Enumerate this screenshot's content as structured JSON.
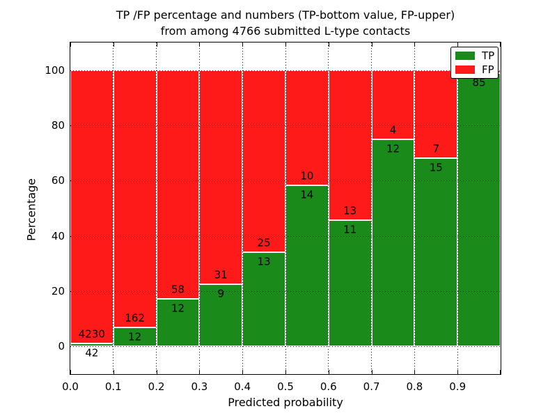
{
  "figure": {
    "title_line1": "TP /FP percentage and numbers (TP-bottom value, FP-upper)",
    "title_line2": "from among 4766 submitted L-type contacts"
  },
  "chart_data": {
    "type": "bar",
    "stacked": true,
    "normalized": "each bin scaled to 100%, numeric count labels shown at TP/FP boundary",
    "title": "TP /FP percentage and numbers (TP-bottom value, FP-upper)\nfrom among 4766 submitted L-type contacts",
    "xlabel": "Predicted probability",
    "ylabel": "Percentage",
    "xlim": [
      0.0,
      1.0
    ],
    "ylim": [
      -10,
      110
    ],
    "bin_width": 0.1,
    "x_tick_labels": [
      "0.0",
      "0.1",
      "0.2",
      "0.3",
      "0.4",
      "0.5",
      "0.6",
      "0.7",
      "0.8",
      "0.9"
    ],
    "y_tick_values": [
      0,
      20,
      40,
      60,
      80,
      100
    ],
    "grid": "dotted black, horizontal at y ticks and vertical at x ticks",
    "categories": [
      "0.0-0.1",
      "0.1-0.2",
      "0.2-0.3",
      "0.3-0.4",
      "0.4-0.5",
      "0.5-0.6",
      "0.6-0.7",
      "0.7-0.8",
      "0.8-0.9",
      "0.9-1.0"
    ],
    "series": [
      {
        "name": "TP",
        "color": "#1a8a1a",
        "counts": [
          42,
          12,
          12,
          9,
          13,
          14,
          11,
          12,
          15,
          85
        ]
      },
      {
        "name": "FP",
        "color": "#ff1a1a",
        "counts": [
          4230,
          162,
          58,
          31,
          25,
          10,
          13,
          4,
          7,
          1
        ]
      }
    ],
    "tp_percent_of_bin": [
      0.98,
      6.9,
      17.14,
      22.5,
      34.21,
      58.33,
      45.83,
      75.0,
      68.18,
      98.84
    ],
    "fp_label_visible": [
      true,
      true,
      true,
      true,
      true,
      true,
      true,
      true,
      true,
      false
    ],
    "tp_label_visible": [
      true,
      true,
      true,
      true,
      true,
      true,
      true,
      true,
      true,
      true
    ],
    "legend": {
      "position": "upper right",
      "entries": [
        {
          "label": "TP",
          "color": "#1a8a1a"
        },
        {
          "label": "FP",
          "color": "#ff1a1a"
        }
      ]
    }
  }
}
